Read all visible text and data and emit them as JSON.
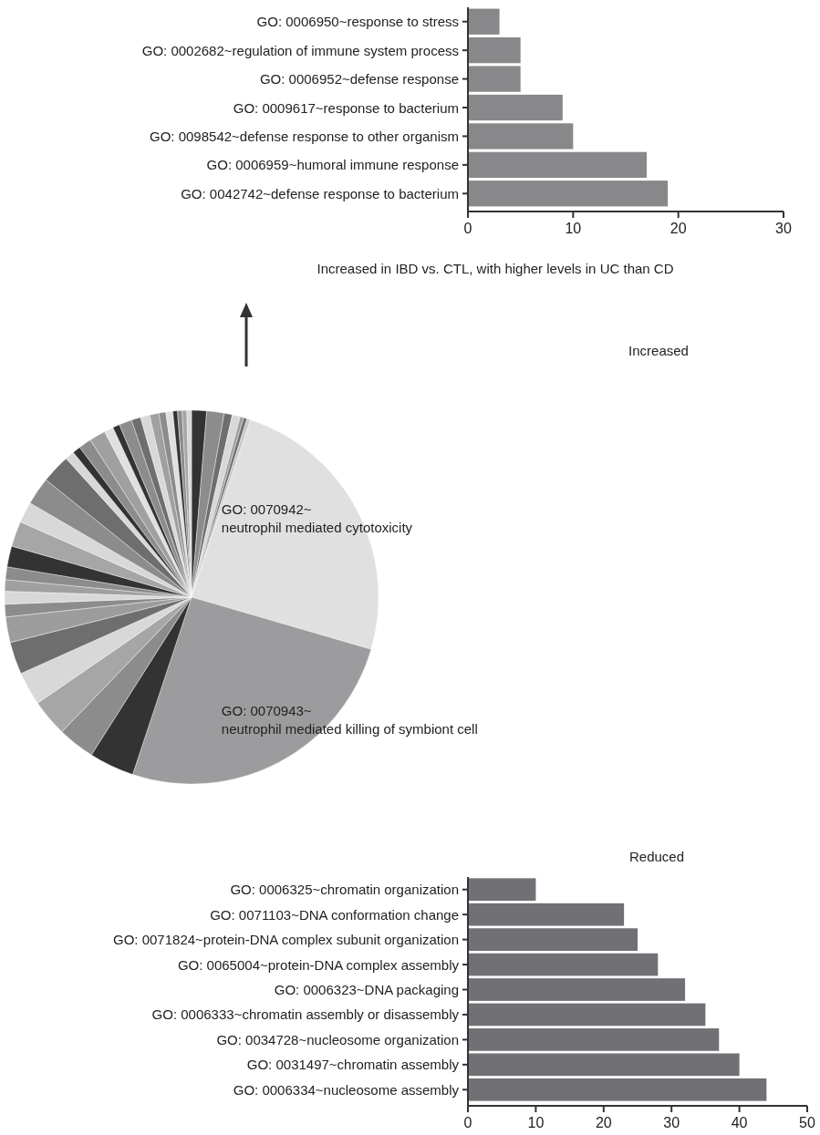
{
  "chart_data": [
    {
      "type": "bar",
      "orientation": "horizontal",
      "title": "Increased in IBD vs. CTL, with higher levels in UC than CD",
      "categories": [
        "GO: 0006950~response to stress",
        "GO: 0002682~regulation of immune system process",
        "GO: 0006952~defense response",
        "GO: 0009617~response to bacterium",
        "GO: 0098542~defense response to other organism",
        "GO: 0006959~humoral immune response",
        "GO: 0042742~defense response to bacterium"
      ],
      "values": [
        3,
        5,
        5,
        9,
        10,
        17,
        19
      ],
      "color": "#88888b",
      "xlim": [
        0,
        30
      ],
      "xticks": [
        0,
        10,
        20,
        30
      ],
      "grid": false
    },
    {
      "type": "pie",
      "title": "Increased",
      "categories": [
        null,
        null,
        null,
        null,
        null,
        null,
        null,
        "GO: 0070942~neutrophil mediated cytotoxicity",
        "GO: 0070943~neutrophil mediated killing of symbiont cell",
        null,
        null,
        null,
        null,
        null,
        null,
        null,
        null,
        null,
        null,
        null,
        null,
        null,
        null,
        null,
        null,
        null,
        null,
        null,
        null,
        null,
        null,
        null,
        null,
        null,
        null,
        null,
        null,
        null,
        null,
        null
      ],
      "values": [
        1.3,
        1.5,
        0.7,
        0.7,
        0.3,
        0.3,
        0.3,
        24.4,
        25.6,
        3.9,
        3.2,
        3.2,
        2.9,
        2.8,
        2.2,
        1.1,
        1.1,
        1.0,
        1.1,
        1.8,
        2.2,
        1.8,
        2.4,
        2.5,
        0.8,
        0.7,
        1.1,
        1.4,
        0.8,
        0.6,
        1.1,
        0.8,
        0.8,
        0.8,
        0.6,
        0.6,
        0.4,
        0.4,
        0.4,
        0.4
      ],
      "colors": [
        "#333333",
        "#8c8c8c",
        "#6e6e6e",
        "#d8d8d8",
        "#a0a0a0",
        "#6e6e6e",
        "#c8c8c8",
        "#e0e0e0",
        "#9c9c9e",
        "#333333",
        "#8c8c8c",
        "#a6a6a6",
        "#d8d8d8",
        "#6e6e6e",
        "#9c9c9c",
        "#8c8c8c",
        "#d8d8d8",
        "#a0a0a0",
        "#8c8c8c",
        "#333333",
        "#a6a6a6",
        "#d8d8d8",
        "#8c8c8c",
        "#6e6e6e",
        "#d8d8d8",
        "#333333",
        "#8c8c8c",
        "#a0a0a0",
        "#e0e0e0",
        "#333333",
        "#8c8c8c",
        "#6e6e6e",
        "#d8d8d8",
        "#a0a0a0",
        "#8c8c8c",
        "#e0e0e0",
        "#333333",
        "#8c8c8c",
        "#a6a6a6",
        "#d8d8d8"
      ]
    },
    {
      "type": "bar",
      "orientation": "horizontal",
      "title": "Reduced",
      "categories": [
        "GO: 0006325~chromatin organization",
        "GO: 0071103~DNA conformation change",
        "GO: 0071824~protein-DNA complex subunit organization",
        "GO: 0065004~protein-DNA complex assembly",
        "GO: 0006323~DNA packaging",
        "GO: 0006333~chromatin assembly or disassembly",
        "GO: 0034728~nucleosome organization",
        "GO: 0031497~chromatin assembly",
        "GO: 0006334~nucleosome assembly"
      ],
      "values": [
        10,
        23,
        25,
        28,
        32,
        35,
        37,
        40,
        44
      ],
      "color": "#707075",
      "xlim": [
        0,
        50
      ],
      "xticks": [
        0,
        10,
        20,
        30,
        40,
        50
      ],
      "grid": false
    }
  ]
}
